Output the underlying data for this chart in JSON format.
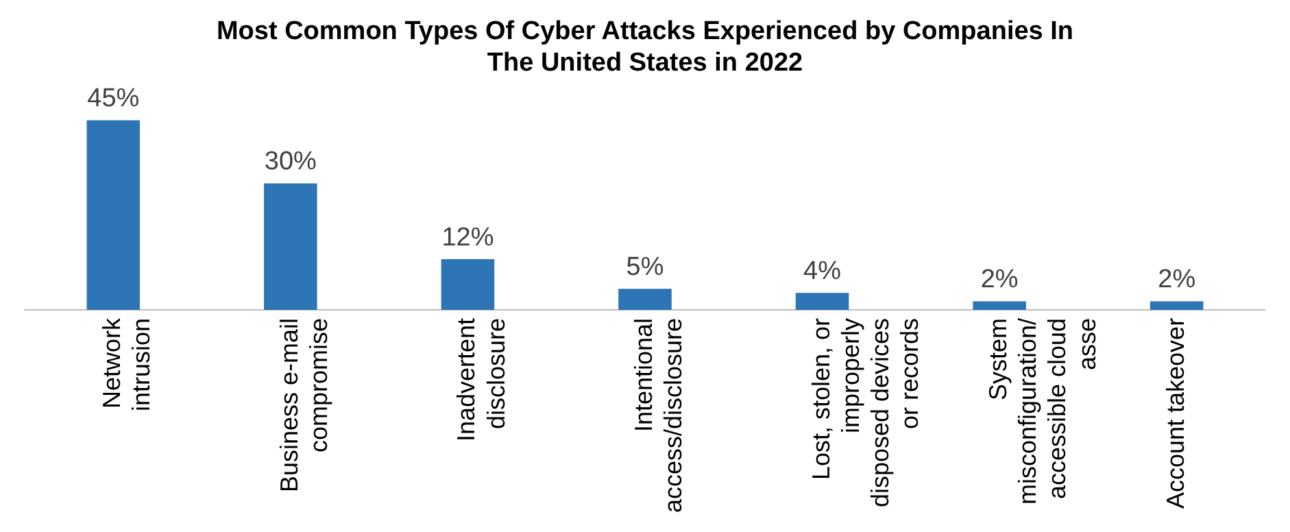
{
  "chart_data": {
    "type": "bar",
    "title": "Most Common Types Of Cyber Attacks Experienced by Companies In The United States in 2022",
    "categories": [
      "Network intrusion",
      "Business e-mail compromise",
      "Inadvertent disclosure",
      "Intentional access/disclosure",
      "Lost, stolen, or improperly disposed devices or records",
      "System misconfiguration/ accessible cloud asse",
      "Account takeover"
    ],
    "values": [
      45,
      30,
      12,
      5,
      4,
      2,
      2
    ],
    "value_labels": [
      "45%",
      "30%",
      "12%",
      "5%",
      "4%",
      "2%",
      "2%"
    ],
    "color": "#2e75b6",
    "grid": false,
    "legend": false,
    "tick_labels": "x"
  }
}
